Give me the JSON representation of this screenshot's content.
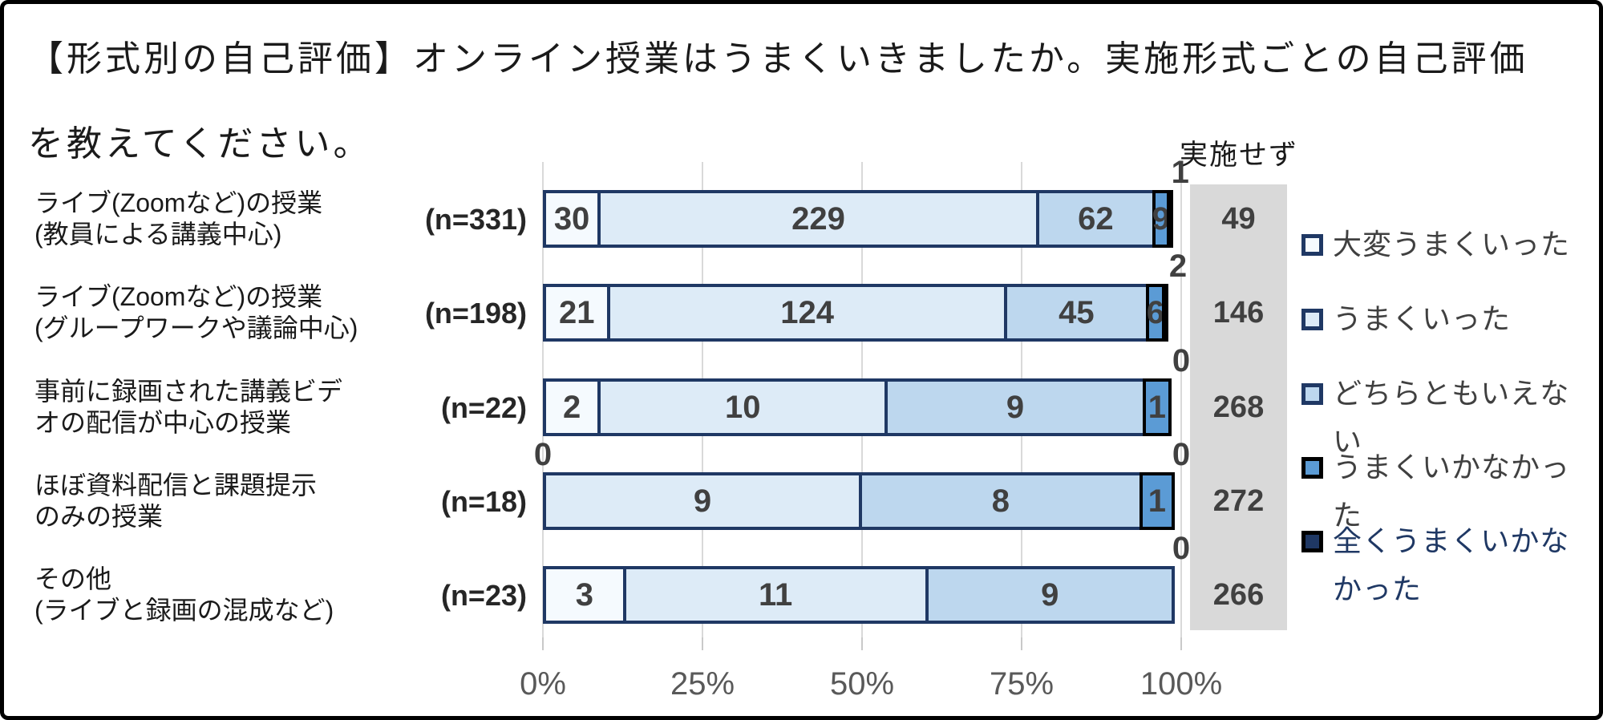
{
  "title": {
    "line1": "【形式別の自己評価】オンライン授業はうまくいきましたか。実施形式ごとの自己評価",
    "line2": "を教えてください。"
  },
  "not_conducted_header": "実施せず",
  "colors": {
    "series_fills": [
      "#F5FAFE",
      "#DDEBF7",
      "#BDD7EE",
      "#5B9BD5",
      "#1F3864"
    ],
    "series_borders": [
      "#1F3864",
      "#1F3864",
      "#1F3864",
      "#000000",
      "#000000"
    ],
    "not_conducted_bg": "#D9D9D9",
    "value_text": "#404040",
    "axis_text": "#595959",
    "gridline": "#D9D9D9",
    "last_legend_text": "#1F3864"
  },
  "chart_data": {
    "type": "bar",
    "stacked": true,
    "orientation": "horizontal",
    "title": "【形式別の自己評価】オンライン授業はうまくいきましたか。実施形式ごとの自己評価を教えてください。",
    "x_axis": {
      "ticks": [
        "0%",
        "25%",
        "50%",
        "75%",
        "100%"
      ],
      "range_percent": [
        0,
        100
      ],
      "grid": true
    },
    "legend_position": "right",
    "legend": [
      {
        "label": "大変うまくいった",
        "fill": "#F5FAFE",
        "border": "#1F3864",
        "text_color": "#404040"
      },
      {
        "label": "うまくいった",
        "fill": "#DDEBF7",
        "border": "#1F3864",
        "text_color": "#404040"
      },
      {
        "label": "どちらともいえない",
        "fill": "#BDD7EE",
        "border": "#1F3864",
        "text_color": "#404040"
      },
      {
        "label": "うまくいかなかった",
        "fill": "#5B9BD5",
        "border": "#000000",
        "text_color": "#404040"
      },
      {
        "label": "全くうまくいかなかった",
        "fill": "#1F3864",
        "border": "#000000",
        "text_color": "#1F3864"
      }
    ],
    "rows": [
      {
        "label_lines": [
          "ライブ(Zoomなど)の授業",
          "(教員による講義中心)"
        ],
        "n_label": "(n=331)",
        "n": 331,
        "values": [
          30,
          229,
          62,
          9,
          1
        ],
        "inside_labels": [
          "30",
          "229",
          "62",
          "9",
          null
        ],
        "above_labels": [
          null,
          null,
          null,
          null,
          "1"
        ],
        "not_conducted": "49"
      },
      {
        "label_lines": [
          "ライブ(Zoomなど)の授業",
          "(グループワークや議論中心)"
        ],
        "n_label": "(n=198)",
        "n": 198,
        "values": [
          21,
          124,
          45,
          6,
          2
        ],
        "inside_labels": [
          "21",
          "124",
          "45",
          "6",
          null
        ],
        "above_labels": [
          null,
          null,
          null,
          null,
          "2"
        ],
        "not_conducted": "146"
      },
      {
        "label_lines": [
          "事前に録画された講義ビデ",
          "オの配信が中心の授業"
        ],
        "n_label": "(n=22)",
        "n": 22,
        "values": [
          2,
          10,
          9,
          1,
          0
        ],
        "inside_labels": [
          "2",
          "10",
          "9",
          "1",
          null
        ],
        "above_labels": [
          null,
          null,
          null,
          null,
          "0"
        ],
        "not_conducted": "268"
      },
      {
        "label_lines": [
          "ほぼ資料配信と課題提示",
          "のみの授業"
        ],
        "n_label": "(n=18)",
        "n": 18,
        "values": [
          0,
          9,
          8,
          1,
          0
        ],
        "inside_labels": [
          null,
          "9",
          "8",
          "1",
          null
        ],
        "above_labels": [
          "0",
          null,
          null,
          null,
          "0"
        ],
        "not_conducted": "272"
      },
      {
        "label_lines": [
          "その他",
          "(ライブと録画の混成など)"
        ],
        "n_label": "(n=23)",
        "n": 23,
        "values": [
          3,
          11,
          9,
          0,
          0
        ],
        "inside_labels": [
          "3",
          "11",
          "9",
          null,
          null
        ],
        "above_labels": [
          null,
          null,
          null,
          null,
          "0"
        ],
        "not_conducted": "266"
      }
    ]
  }
}
